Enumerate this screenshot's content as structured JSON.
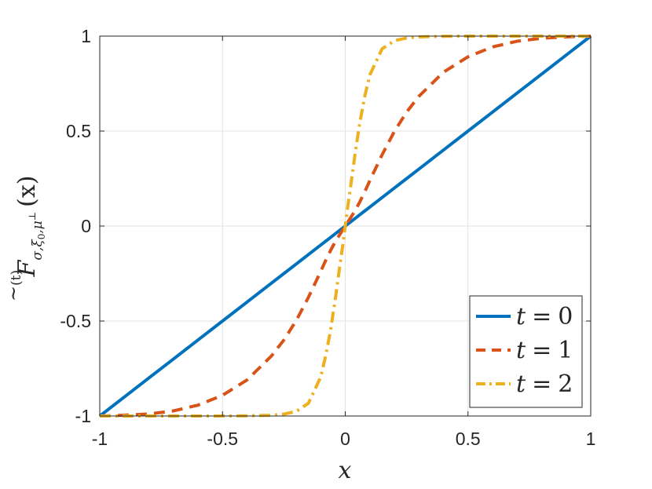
{
  "chart_data": {
    "type": "line",
    "title": "",
    "xlabel": "x",
    "ylabel": {
      "base": "F",
      "accent": "~",
      "superscript": "(t)",
      "subscript": "σ,ξ",
      "subscript_index": "0",
      "subscript_tail": ",μ",
      "subscript_tail_sup": "⊥",
      "argument": "(x)"
    },
    "xlim": [
      -1,
      1
    ],
    "ylim": [
      -1,
      1
    ],
    "xticks": [
      -1,
      -0.5,
      0,
      0.5,
      1
    ],
    "yticks": [
      -1,
      -0.5,
      0,
      0.5,
      1
    ],
    "xtick_labels": [
      "-1",
      "-0.5",
      "0",
      "0.5",
      "1"
    ],
    "ytick_labels": [
      "-1",
      "-0.5",
      "0",
      "0.5",
      "1"
    ],
    "grid": true,
    "legend_position": "bottom-right",
    "x": [
      -1,
      -0.9,
      -0.8,
      -0.7,
      -0.6,
      -0.5,
      -0.4,
      -0.3,
      -0.25,
      -0.2,
      -0.15,
      -0.1,
      -0.08,
      -0.06,
      -0.04,
      -0.02,
      -0.01,
      0,
      0.01,
      0.02,
      0.04,
      0.06,
      0.08,
      0.1,
      0.15,
      0.2,
      0.25,
      0.3,
      0.4,
      0.5,
      0.6,
      0.7,
      0.8,
      0.9,
      1
    ],
    "series": [
      {
        "name": "t = 0",
        "color": "#0072BD",
        "style": "solid",
        "values": [
          -1,
          -0.9,
          -0.8,
          -0.7,
          -0.6,
          -0.5,
          -0.4,
          -0.3,
          -0.25,
          -0.2,
          -0.15,
          -0.1,
          -0.08,
          -0.06,
          -0.04,
          -0.02,
          -0.01,
          0,
          0.01,
          0.02,
          0.04,
          0.06,
          0.08,
          0.1,
          0.15,
          0.2,
          0.25,
          0.3,
          0.4,
          0.5,
          0.6,
          0.7,
          0.8,
          0.9,
          1
        ]
      },
      {
        "name": "t = 1",
        "color": "#D95319",
        "style": "dashed",
        "values": [
          -1,
          -0.996,
          -0.989,
          -0.973,
          -0.943,
          -0.891,
          -0.81,
          -0.683,
          -0.6,
          -0.498,
          -0.375,
          -0.239,
          -0.182,
          -0.129,
          -0.081,
          -0.04,
          -0.02,
          0,
          0.02,
          0.04,
          0.081,
          0.129,
          0.182,
          0.239,
          0.375,
          0.498,
          0.6,
          0.683,
          0.81,
          0.891,
          0.943,
          0.973,
          0.989,
          0.996,
          1
        ]
      },
      {
        "name": "t = 2",
        "color": "#EDB120",
        "style": "dash-dot",
        "values": [
          -1,
          -1,
          -1,
          -1,
          -1,
          -1,
          -0.999,
          -0.996,
          -0.99,
          -0.976,
          -0.933,
          -0.795,
          -0.685,
          -0.55,
          -0.38,
          -0.19,
          -0.1,
          0,
          0.1,
          0.19,
          0.38,
          0.55,
          0.685,
          0.795,
          0.933,
          0.976,
          0.99,
          0.996,
          0.999,
          1,
          1,
          1,
          1,
          1,
          1
        ]
      }
    ],
    "legend": [
      {
        "var": "t",
        "op": "=",
        "val": "0"
      },
      {
        "var": "t",
        "op": "=",
        "val": "1"
      },
      {
        "var": "t",
        "op": "=",
        "val": "2"
      }
    ]
  }
}
